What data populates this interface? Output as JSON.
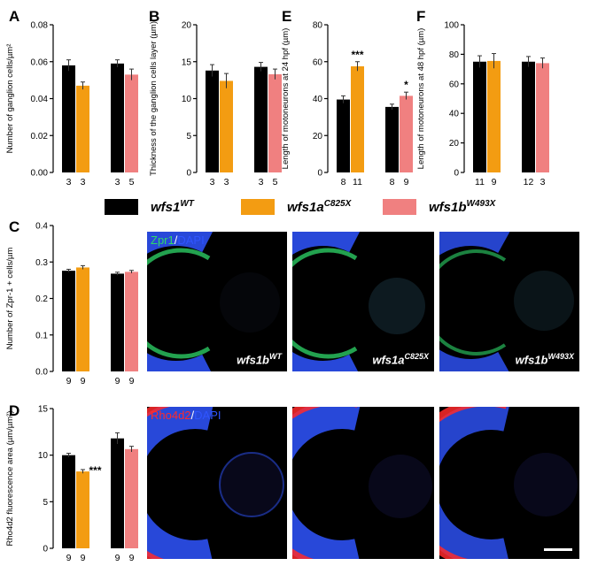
{
  "colors": {
    "wt": "#000000",
    "a": "#f39c12",
    "b": "#f08080",
    "zpr1": "#2fd86a",
    "dapi": "#2f55ff",
    "rho": "#ff2a2a"
  },
  "legend": [
    {
      "key": "wt",
      "base": "wfs1",
      "sup": "WT"
    },
    {
      "key": "a",
      "base": "wfs1a",
      "sup": "C825X"
    },
    {
      "key": "b",
      "base": "wfs1b",
      "sup": "W493X"
    }
  ],
  "chart_data": [
    {
      "id": "A",
      "panel_letter": "A",
      "type": "bar",
      "ylabel": "Number of ganglion cells/µm²",
      "ylim": [
        0,
        0.08
      ],
      "yticks": [
        "0.00",
        "0.02",
        "0.04",
        "0.06",
        "0.08"
      ],
      "values": [
        0.058,
        0.047,
        0.059,
        0.053
      ],
      "errors": [
        0.003,
        0.002,
        0.002,
        0.003
      ],
      "ns": [
        "3",
        "3",
        "3",
        "5"
      ],
      "sig": [
        "",
        "",
        "",
        ""
      ]
    },
    {
      "id": "B",
      "panel_letter": "B",
      "type": "bar",
      "ylabel": "Thickness of the ganglion cells layer (µm)",
      "ylim": [
        0,
        20
      ],
      "yticks": [
        "0",
        "5",
        "10",
        "15",
        "20"
      ],
      "values": [
        13.8,
        12.4,
        14.3,
        13.3
      ],
      "errors": [
        0.8,
        1.0,
        0.6,
        0.7
      ],
      "ns": [
        "3",
        "3",
        "3",
        "5"
      ],
      "sig": [
        "",
        "",
        "",
        ""
      ]
    },
    {
      "id": "E",
      "panel_letter": "E",
      "type": "bar",
      "ylabel": "Length of motoneurons at 24 hpf (µm)",
      "ylim": [
        0,
        80
      ],
      "yticks": [
        "0",
        "20",
        "40",
        "60",
        "80"
      ],
      "values": [
        39.5,
        57.5,
        35.5,
        41.5
      ],
      "errors": [
        2.0,
        2.5,
        1.5,
        2.0
      ],
      "ns": [
        "8",
        "11",
        "8",
        "9"
      ],
      "sig": [
        "",
        "***",
        "",
        "*"
      ]
    },
    {
      "id": "F",
      "panel_letter": "F",
      "type": "bar",
      "ylabel": "Length of motoneurons at 48 hpf (µm)",
      "ylim": [
        0,
        100
      ],
      "yticks": [
        "0",
        "20",
        "40",
        "60",
        "80",
        "100"
      ],
      "values": [
        75,
        75.5,
        75,
        74
      ],
      "errors": [
        4,
        5,
        3.5,
        3.5
      ],
      "ns": [
        "11",
        "9",
        "12",
        "3"
      ],
      "sig": [
        "",
        "",
        "",
        ""
      ]
    },
    {
      "id": "C",
      "panel_letter": "C",
      "type": "bar",
      "ylabel": "Number of Zpr-1 + cells/µm",
      "ylim": [
        0,
        0.4
      ],
      "yticks": [
        "0.0",
        "0.1",
        "0.2",
        "0.3",
        "0.4"
      ],
      "values": [
        0.276,
        0.285,
        0.268,
        0.273
      ],
      "errors": [
        0.004,
        0.005,
        0.004,
        0.004
      ],
      "ns": [
        "9",
        "9",
        "9",
        "9"
      ],
      "sig": [
        "",
        "",
        "",
        ""
      ]
    },
    {
      "id": "D",
      "panel_letter": "D",
      "type": "bar",
      "ylabel": "Rho4d2 fluorescence area (µm/µm²)",
      "ylim": [
        0,
        15
      ],
      "yticks": [
        "0",
        "5",
        "10",
        "15"
      ],
      "values": [
        10.0,
        8.25,
        11.8,
        10.65
      ],
      "errors": [
        0.2,
        0.2,
        0.6,
        0.3
      ],
      "ns": [
        "9",
        "9",
        "9",
        "9"
      ],
      "sig": [
        "",
        "***",
        "",
        ""
      ]
    }
  ],
  "micrographs": {
    "zpr1_label": {
      "marker": "Zpr1",
      "slash": "/",
      "dapi": "DAPI"
    },
    "rho_label": {
      "marker": "Rho4d2",
      "slash": "/",
      "dapi": "DAPI"
    },
    "genotypes": [
      {
        "base": "wfs1b",
        "sup": "WT"
      },
      {
        "base": "wfs1a",
        "sup": "C825X"
      },
      {
        "base": "wfs1b",
        "sup": "W493X"
      }
    ]
  }
}
